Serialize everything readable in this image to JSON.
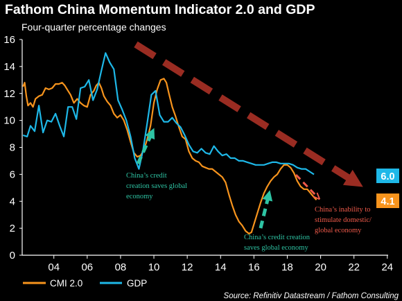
{
  "header": {
    "title": "Fathom China Momentum Indicator 2.0 and GDP",
    "subtitle": "Four-quarter percentage changes"
  },
  "chart_data": {
    "type": "line",
    "title": "Fathom China Momentum Indicator 2.0 and GDP",
    "subtitle": "Four-quarter percentage changes",
    "xlabel": "",
    "ylabel": "",
    "xlim": [
      2002.1,
      2024.05
    ],
    "ylim": [
      0,
      16
    ],
    "x_ticks": [
      "04",
      "06",
      "08",
      "10",
      "12",
      "14",
      "16",
      "18",
      "20",
      "22",
      "24"
    ],
    "y_ticks": [
      "0",
      "2",
      "4",
      "6",
      "8",
      "10",
      "12",
      "14",
      "16"
    ],
    "grid": false,
    "legend_position": "bottom-left",
    "series": [
      {
        "name": "CMI 2.0",
        "color": "#f7941d",
        "points": [
          [
            2002.15,
            12.5
          ],
          [
            2002.25,
            12.8
          ],
          [
            2002.35,
            11.8
          ],
          [
            2002.45,
            11.1
          ],
          [
            2002.6,
            11.3
          ],
          [
            2002.75,
            11.0
          ],
          [
            2002.9,
            11.6
          ],
          [
            2003.1,
            11.8
          ],
          [
            2003.3,
            11.9
          ],
          [
            2003.5,
            12.4
          ],
          [
            2003.7,
            12.3
          ],
          [
            2003.9,
            12.4
          ],
          [
            2004.1,
            12.7
          ],
          [
            2004.3,
            12.7
          ],
          [
            2004.5,
            12.8
          ],
          [
            2004.65,
            12.6
          ],
          [
            2004.8,
            12.3
          ],
          [
            2005.0,
            11.9
          ],
          [
            2005.2,
            11.3
          ],
          [
            2005.4,
            11.6
          ],
          [
            2005.6,
            11.3
          ],
          [
            2005.8,
            11.1
          ],
          [
            2006.0,
            11.0
          ],
          [
            2006.2,
            11.9
          ],
          [
            2006.4,
            12.2
          ],
          [
            2006.55,
            12.6
          ],
          [
            2006.7,
            12.8
          ],
          [
            2006.85,
            12.4
          ],
          [
            2007.0,
            11.8
          ],
          [
            2007.2,
            11.4
          ],
          [
            2007.4,
            11.1
          ],
          [
            2007.6,
            10.5
          ],
          [
            2007.8,
            10.2
          ],
          [
            2008.0,
            10.4
          ],
          [
            2008.2,
            10.0
          ],
          [
            2008.4,
            9.3
          ],
          [
            2008.6,
            8.4
          ],
          [
            2008.8,
            7.6
          ],
          [
            2009.0,
            7.3
          ],
          [
            2009.2,
            7.4
          ],
          [
            2009.4,
            7.8
          ],
          [
            2009.6,
            8.6
          ],
          [
            2009.8,
            9.6
          ],
          [
            2010.0,
            11.3
          ],
          [
            2010.2,
            12.3
          ],
          [
            2010.4,
            13.0
          ],
          [
            2010.6,
            13.1
          ],
          [
            2010.75,
            12.8
          ],
          [
            2010.9,
            12.0
          ],
          [
            2011.1,
            11.0
          ],
          [
            2011.3,
            10.3
          ],
          [
            2011.5,
            9.5
          ],
          [
            2011.7,
            8.8
          ],
          [
            2011.9,
            8.6
          ],
          [
            2012.1,
            7.7
          ],
          [
            2012.3,
            7.2
          ],
          [
            2012.5,
            7.0
          ],
          [
            2012.7,
            6.9
          ],
          [
            2012.9,
            6.6
          ],
          [
            2013.1,
            6.5
          ],
          [
            2013.3,
            6.4
          ],
          [
            2013.5,
            6.4
          ],
          [
            2013.7,
            6.2
          ],
          [
            2013.9,
            6.0
          ],
          [
            2014.1,
            5.8
          ],
          [
            2014.3,
            5.4
          ],
          [
            2014.5,
            4.5
          ],
          [
            2014.7,
            3.7
          ],
          [
            2014.9,
            3.0
          ],
          [
            2015.1,
            2.5
          ],
          [
            2015.3,
            2.2
          ],
          [
            2015.5,
            1.8
          ],
          [
            2015.7,
            1.6
          ],
          [
            2015.85,
            1.7
          ],
          [
            2016.0,
            2.3
          ],
          [
            2016.2,
            3.1
          ],
          [
            2016.4,
            3.9
          ],
          [
            2016.6,
            4.6
          ],
          [
            2016.8,
            5.1
          ],
          [
            2017.0,
            5.5
          ],
          [
            2017.2,
            5.8
          ],
          [
            2017.4,
            6.0
          ],
          [
            2017.6,
            6.4
          ],
          [
            2017.8,
            6.7
          ],
          [
            2018.0,
            6.7
          ],
          [
            2018.2,
            6.5
          ],
          [
            2018.4,
            6.1
          ],
          [
            2018.6,
            5.5
          ],
          [
            2018.8,
            5.1
          ],
          [
            2019.0,
            4.9
          ],
          [
            2019.2,
            4.9
          ],
          [
            2019.4,
            4.6
          ],
          [
            2019.6,
            4.3
          ],
          [
            2019.75,
            4.1
          ]
        ]
      },
      {
        "name": "GDP",
        "color": "#1eb8e8",
        "points": [
          [
            2002.15,
            8.9
          ],
          [
            2002.4,
            8.8
          ],
          [
            2002.6,
            9.6
          ],
          [
            2002.85,
            9.2
          ],
          [
            2003.1,
            11.1
          ],
          [
            2003.35,
            9.1
          ],
          [
            2003.6,
            10.0
          ],
          [
            2003.85,
            9.9
          ],
          [
            2004.1,
            10.5
          ],
          [
            2004.35,
            9.6
          ],
          [
            2004.6,
            8.8
          ],
          [
            2004.85,
            11.0
          ],
          [
            2005.1,
            11.0
          ],
          [
            2005.35,
            10.1
          ],
          [
            2005.6,
            12.4
          ],
          [
            2005.85,
            12.5
          ],
          [
            2006.1,
            13.0
          ],
          [
            2006.35,
            11.5
          ],
          [
            2006.6,
            12.3
          ],
          [
            2006.85,
            13.7
          ],
          [
            2007.1,
            15.0
          ],
          [
            2007.35,
            14.3
          ],
          [
            2007.6,
            13.8
          ],
          [
            2007.85,
            11.5
          ],
          [
            2008.1,
            10.8
          ],
          [
            2008.35,
            10.0
          ],
          [
            2008.6,
            8.8
          ],
          [
            2008.85,
            7.2
          ],
          [
            2009.1,
            6.4
          ],
          [
            2009.35,
            7.8
          ],
          [
            2009.6,
            9.8
          ],
          [
            2009.85,
            11.9
          ],
          [
            2010.1,
            12.2
          ],
          [
            2010.35,
            10.4
          ],
          [
            2010.6,
            9.9
          ],
          [
            2010.85,
            9.9
          ],
          [
            2011.1,
            10.2
          ],
          [
            2011.35,
            9.8
          ],
          [
            2011.6,
            9.5
          ],
          [
            2011.85,
            8.9
          ],
          [
            2012.1,
            8.2
          ],
          [
            2012.35,
            7.7
          ],
          [
            2012.6,
            7.6
          ],
          [
            2012.85,
            7.9
          ],
          [
            2013.1,
            7.6
          ],
          [
            2013.35,
            7.5
          ],
          [
            2013.6,
            8.1
          ],
          [
            2013.85,
            7.7
          ],
          [
            2014.1,
            7.4
          ],
          [
            2014.35,
            7.5
          ],
          [
            2014.6,
            7.2
          ],
          [
            2014.85,
            7.2
          ],
          [
            2015.1,
            7.0
          ],
          [
            2015.35,
            7.0
          ],
          [
            2015.6,
            6.9
          ],
          [
            2015.85,
            6.8
          ],
          [
            2016.1,
            6.7
          ],
          [
            2016.35,
            6.7
          ],
          [
            2016.6,
            6.7
          ],
          [
            2016.85,
            6.8
          ],
          [
            2017.1,
            6.9
          ],
          [
            2017.35,
            6.9
          ],
          [
            2017.6,
            6.8
          ],
          [
            2017.85,
            6.8
          ],
          [
            2018.1,
            6.8
          ],
          [
            2018.35,
            6.7
          ],
          [
            2018.6,
            6.5
          ],
          [
            2018.85,
            6.4
          ],
          [
            2019.1,
            6.4
          ],
          [
            2019.35,
            6.2
          ],
          [
            2019.6,
            6.0
          ]
        ]
      }
    ],
    "end_labels": [
      {
        "series": "GDP",
        "text": "6.0",
        "color": "#1eb8e8"
      },
      {
        "series": "CMI 2.0",
        "text": "4.1",
        "color": "#f7941d"
      }
    ],
    "annotations": [
      {
        "lines": [
          "China’s credit",
          "creation saves global",
          "economy"
        ],
        "color": "#2ec4a4"
      },
      {
        "lines": [
          "China’s credit creation",
          "saves global economy"
        ],
        "color": "#2ec4a4"
      },
      {
        "lines": [
          "China’s inability to",
          "stimulate domestic/",
          "global economy"
        ],
        "color": "#f05a4a"
      }
    ],
    "trend_arrow_color": "#9a2c22",
    "down_arrow_color": "#f05a4a",
    "up_arrow_color": "#2ec4a4"
  },
  "footer": {
    "source": "Source: Refinitiv Datastream / Fathom Consulting"
  }
}
